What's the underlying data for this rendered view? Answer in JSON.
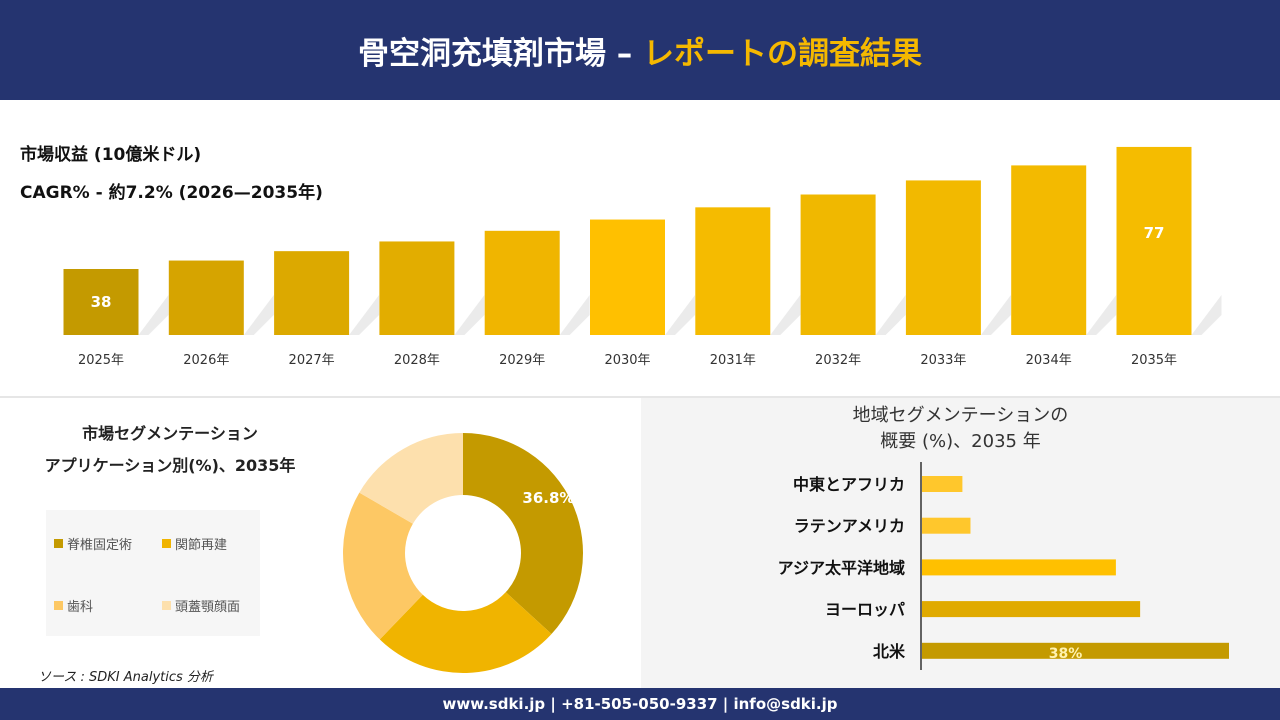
{
  "header": {
    "title_main": "骨空洞充填剤市場 –",
    "title_highlight": "レポートの調査結果"
  },
  "revenue": {
    "label": "市場収益 (10億米ドル)",
    "cagr": "CAGR% - 約7.2% (2026—2035年)"
  },
  "chart_data": [
    {
      "type": "bar",
      "categories": [
        "2025年",
        "2026年",
        "2027年",
        "2028年",
        "2029年",
        "2030年",
        "2031年",
        "2032年",
        "2033年",
        "2034年",
        "2035年"
      ],
      "values": [
        38,
        40.7,
        43.7,
        46.8,
        50.2,
        53.8,
        57.7,
        61.8,
        66.3,
        71.1,
        77
      ],
      "data_labels": {
        "0": "38",
        "10": "77"
      },
      "colors": [
        "#c49a00",
        "#d6a400",
        "#dca900",
        "#e2ad00",
        "#f0b500",
        "#ffc000",
        "#f5bb00",
        "#f0b800",
        "#f2b900",
        "#f3ba00",
        "#f5bc00"
      ]
    },
    {
      "type": "pie",
      "title": "市場セグメンテーション",
      "subtitle": "アプリケーション別(%)、2035年",
      "labels": [
        "脊椎固定術",
        "関節再建",
        "歯科",
        "頭蓋顎顔面"
      ],
      "values": [
        36.8,
        25.4,
        21.2,
        16.6
      ],
      "data_labels": {
        "0": "36.8%"
      },
      "colors": [
        "#c49a00",
        "#f0b400",
        "#fdc864",
        "#fde0ad"
      ]
    },
    {
      "type": "bar",
      "orientation": "horizontal",
      "title": "地域セグメンテーションの",
      "subtitle": "概要 (%)、2035 年",
      "categories": [
        "中東とアフリカ",
        "ラテンアメリカ",
        "アジア太平洋地域",
        "ヨーロッパ",
        "北米"
      ],
      "values": [
        5,
        6,
        24,
        27,
        38
      ],
      "data_labels": {
        "4": "38%"
      },
      "colors": [
        "#ffc72c",
        "#ffc72c",
        "#ffc000",
        "#e0aa00",
        "#c49a00"
      ]
    }
  ],
  "source": "ソース : SDKI Analytics 分析",
  "footer": "www.sdki.jp | +81-505-050-9337 | info@sdki.jp"
}
